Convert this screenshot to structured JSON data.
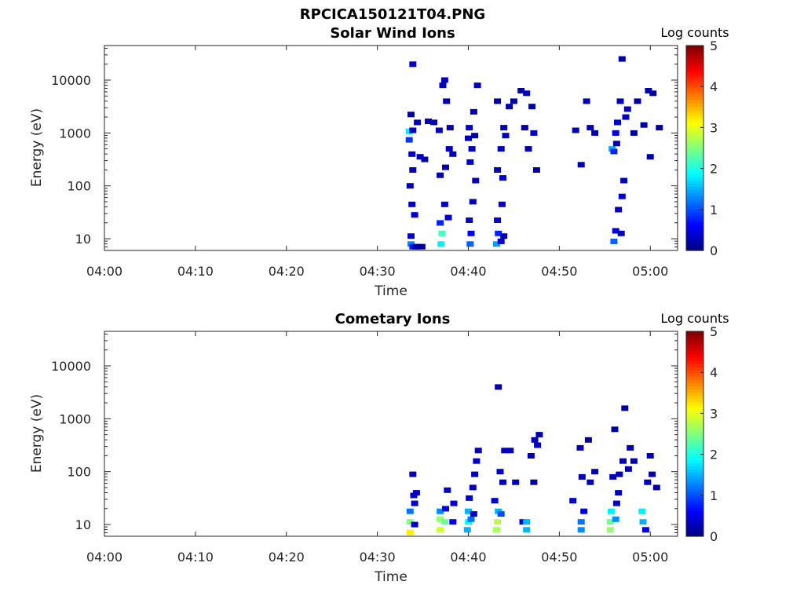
{
  "figure": {
    "filename": "RPCICA150121T04.PNG",
    "x_label": "Time",
    "y_label": "Energy (eV)",
    "colorbar_label": "Log counts",
    "x_ticks": [
      "04:00",
      "04:10",
      "04:20",
      "04:30",
      "04:40",
      "04:50",
      "05:00"
    ],
    "y_ticks": [
      "10",
      "100",
      "1000",
      "10000"
    ],
    "colorbar_ticks": [
      "0",
      "1",
      "2",
      "3",
      "4",
      "5"
    ]
  },
  "chart_data": [
    {
      "type": "heatmap",
      "title": "Solar Wind Ions",
      "xlabel": "Time",
      "ylabel": "Energy (eV)",
      "x_range_minutes_after_0400": [
        0,
        63
      ],
      "y_range_eV": [
        6,
        45000
      ],
      "y_scale": "log",
      "colorbar": {
        "label": "Log counts",
        "range": [
          0,
          5
        ]
      },
      "cells": [
        [
          33.5,
          2.87,
          0.9
        ],
        [
          33.5,
          3.03,
          1.8
        ],
        [
          33.7,
          1.05,
          0.5
        ],
        [
          33.7,
          0.9,
          1.3
        ],
        [
          33.9,
          0.85,
          0.8
        ],
        [
          33.9,
          4.3,
          0.4
        ],
        [
          34.2,
          0.85,
          0.3
        ],
        [
          34.5,
          0.85,
          0.2
        ],
        [
          34.9,
          0.85,
          0.2
        ],
        [
          33.8,
          1.65,
          0.4
        ],
        [
          34.1,
          1.45,
          0.4
        ],
        [
          33.6,
          2.0,
          0.3
        ],
        [
          33.9,
          2.3,
          0.3
        ],
        [
          34.4,
          3.2,
          0.3
        ],
        [
          33.9,
          3.05,
          0.4
        ],
        [
          33.7,
          3.35,
          0.2
        ],
        [
          33.8,
          2.6,
          0.4
        ],
        [
          34.7,
          2.55,
          0.3
        ],
        [
          35.2,
          2.5,
          0.2
        ],
        [
          35.6,
          3.22,
          0.3
        ],
        [
          36.2,
          3.2,
          0.2
        ],
        [
          36.8,
          3.05,
          0.4
        ],
        [
          37.0,
          0.9,
          1.8
        ],
        [
          37.1,
          1.1,
          2.2
        ],
        [
          36.9,
          1.3,
          0.8
        ],
        [
          37.2,
          3.9,
          0.3
        ],
        [
          37.4,
          4.0,
          0.3
        ],
        [
          37.6,
          3.6,
          0.2
        ],
        [
          37.5,
          2.35,
          0.2
        ],
        [
          37.8,
          1.4,
          0.4
        ],
        [
          37.4,
          1.65,
          0.4
        ],
        [
          37.9,
          2.7,
          0.3
        ],
        [
          38.0,
          3.1,
          0.3
        ],
        [
          38.3,
          2.6,
          0.3
        ],
        [
          36.9,
          2.2,
          0.2
        ],
        [
          40.2,
          0.9,
          1.1
        ],
        [
          40.3,
          1.1,
          0.6
        ],
        [
          40.1,
          1.35,
          0.4
        ],
        [
          40.5,
          1.7,
          0.3
        ],
        [
          40.8,
          2.1,
          0.3
        ],
        [
          40.2,
          2.45,
          0.4
        ],
        [
          40.4,
          2.7,
          0.3
        ],
        [
          40.1,
          3.1,
          0.4
        ],
        [
          40.6,
          3.4,
          0.3
        ],
        [
          41.0,
          3.9,
          0.3
        ],
        [
          40.0,
          2.9,
          0.3
        ],
        [
          40.7,
          2.95,
          0.2
        ],
        [
          43.1,
          0.9,
          1.4
        ],
        [
          43.3,
          1.1,
          0.8
        ],
        [
          43.6,
          0.95,
          0.4
        ],
        [
          43.9,
          1.05,
          0.3
        ],
        [
          43.2,
          1.35,
          0.4
        ],
        [
          43.7,
          1.65,
          0.4
        ],
        [
          43.2,
          2.3,
          0.3
        ],
        [
          43.6,
          2.7,
          0.3
        ],
        [
          43.8,
          2.15,
          0.4
        ],
        [
          43.9,
          3.1,
          0.3
        ],
        [
          44.1,
          2.95,
          0.3
        ],
        [
          43.2,
          3.6,
          0.2
        ],
        [
          44.5,
          3.5,
          0.2
        ],
        [
          45.0,
          3.6,
          0.2
        ],
        [
          45.8,
          3.8,
          0.2
        ],
        [
          46.4,
          3.75,
          0.3
        ],
        [
          46.2,
          3.1,
          0.2
        ],
        [
          46.6,
          2.7,
          0.2
        ],
        [
          47.2,
          3.0,
          0.3
        ],
        [
          47.5,
          2.3,
          0.2
        ],
        [
          47.0,
          3.5,
          0.2
        ],
        [
          51.8,
          3.05,
          0.3
        ],
        [
          52.4,
          2.4,
          0.2
        ],
        [
          53.0,
          3.6,
          0.3
        ],
        [
          53.4,
          3.1,
          0.3
        ],
        [
          53.9,
          3.0,
          0.2
        ],
        [
          55.8,
          2.7,
          1.5
        ],
        [
          56.0,
          2.65,
          0.8
        ],
        [
          56.2,
          3.0,
          0.4
        ],
        [
          56.3,
          2.8,
          0.3
        ],
        [
          56.0,
          0.95,
          1.1
        ],
        [
          56.2,
          1.15,
          0.4
        ],
        [
          56.8,
          1.1,
          0.3
        ],
        [
          56.5,
          1.55,
          0.3
        ],
        [
          56.9,
          1.8,
          0.4
        ],
        [
          57.1,
          2.1,
          0.3
        ],
        [
          56.4,
          3.2,
          0.4
        ],
        [
          56.7,
          3.6,
          0.3
        ],
        [
          57.3,
          3.3,
          0.3
        ],
        [
          56.9,
          4.4,
          0.2
        ],
        [
          57.5,
          3.45,
          0.3
        ],
        [
          58.2,
          3.0,
          0.2
        ],
        [
          58.6,
          3.6,
          0.2
        ],
        [
          59.3,
          3.15,
          0.2
        ],
        [
          59.8,
          3.8,
          0.2
        ],
        [
          60.3,
          3.75,
          0.2
        ],
        [
          60.0,
          2.55,
          0.2
        ],
        [
          61.0,
          3.1,
          0.2
        ]
      ]
    },
    {
      "type": "heatmap",
      "title": "Cometary Ions",
      "xlabel": "Time",
      "ylabel": "Energy (eV)",
      "x_range_minutes_after_0400": [
        0,
        63
      ],
      "y_range_eV": [
        6,
        45000
      ],
      "y_scale": "log",
      "colorbar": {
        "label": "Log counts",
        "range": [
          0,
          5
        ]
      },
      "cells": [
        [
          33.6,
          0.85,
          3.2
        ],
        [
          33.6,
          1.05,
          2.5
        ],
        [
          33.6,
          1.25,
          1.2
        ],
        [
          34.1,
          1.0,
          0.4
        ],
        [
          34.1,
          1.4,
          0.3
        ],
        [
          34.3,
          1.6,
          0.3
        ],
        [
          33.9,
          1.95,
          0.3
        ],
        [
          34.0,
          1.55,
          0.3
        ],
        [
          36.9,
          0.9,
          2.9
        ],
        [
          36.9,
          1.1,
          2.6
        ],
        [
          36.9,
          1.25,
          1.3
        ],
        [
          37.4,
          1.05,
          2.4
        ],
        [
          37.5,
          1.3,
          0.5
        ],
        [
          37.7,
          1.65,
          0.4
        ],
        [
          38.3,
          1.05,
          0.6
        ],
        [
          38.4,
          1.4,
          0.4
        ],
        [
          39.9,
          0.9,
          1.5
        ],
        [
          40.0,
          1.05,
          1.9
        ],
        [
          40.0,
          1.25,
          1.5
        ],
        [
          40.3,
          1.1,
          1.2
        ],
        [
          40.6,
          1.2,
          0.4
        ],
        [
          40.1,
          1.5,
          0.4
        ],
        [
          40.5,
          1.7,
          0.3
        ],
        [
          40.7,
          1.95,
          0.3
        ],
        [
          40.9,
          2.2,
          0.3
        ],
        [
          41.1,
          2.4,
          0.3
        ],
        [
          43.1,
          0.9,
          2.7
        ],
        [
          43.2,
          1.05,
          2.8
        ],
        [
          43.3,
          1.25,
          1.5
        ],
        [
          43.6,
          1.2,
          1.0
        ],
        [
          42.9,
          1.45,
          0.4
        ],
        [
          43.5,
          2.0,
          0.4
        ],
        [
          43.8,
          1.8,
          0.3
        ],
        [
          44.0,
          2.4,
          0.3
        ],
        [
          44.6,
          2.4,
          0.3
        ],
        [
          45.2,
          1.8,
          0.3
        ],
        [
          43.3,
          3.6,
          0.2
        ],
        [
          46.0,
          1.05,
          0.4
        ],
        [
          46.4,
          0.9,
          1.5
        ],
        [
          46.4,
          1.05,
          1.5
        ],
        [
          46.9,
          2.3,
          0.3
        ],
        [
          47.3,
          2.6,
          0.3
        ],
        [
          47.6,
          2.5,
          0.3
        ],
        [
          47.2,
          1.8,
          0.2
        ],
        [
          47.8,
          2.7,
          0.2
        ],
        [
          51.5,
          1.45,
          0.4
        ],
        [
          52.4,
          0.9,
          1.3
        ],
        [
          52.4,
          1.05,
          1.2
        ],
        [
          52.7,
          1.25,
          0.5
        ],
        [
          52.5,
          1.9,
          0.3
        ],
        [
          53.4,
          1.8,
          0.3
        ],
        [
          53.9,
          2.0,
          0.3
        ],
        [
          52.3,
          2.45,
          0.3
        ],
        [
          53.2,
          2.6,
          0.2
        ],
        [
          55.6,
          0.9,
          2.6
        ],
        [
          55.6,
          1.05,
          2.4
        ],
        [
          55.7,
          1.25,
          1.8
        ],
        [
          56.2,
          1.1,
          1.3
        ],
        [
          56.3,
          1.4,
          0.4
        ],
        [
          56.5,
          1.6,
          0.3
        ],
        [
          56.6,
          1.95,
          0.3
        ],
        [
          57.0,
          2.2,
          0.3
        ],
        [
          57.2,
          3.2,
          0.2
        ],
        [
          57.8,
          2.45,
          0.2
        ],
        [
          58.2,
          2.2,
          0.2
        ],
        [
          59.2,
          1.05,
          1.5
        ],
        [
          59.1,
          1.25,
          1.8
        ],
        [
          59.5,
          0.9,
          0.5
        ],
        [
          59.7,
          1.8,
          0.3
        ],
        [
          60.0,
          2.3,
          0.3
        ],
        [
          60.2,
          1.95,
          0.2
        ],
        [
          60.7,
          1.7,
          0.2
        ],
        [
          55.9,
          1.9,
          0.3
        ],
        [
          56.1,
          2.8,
          0.2
        ],
        [
          57.6,
          2.05,
          0.2
        ]
      ]
    }
  ]
}
